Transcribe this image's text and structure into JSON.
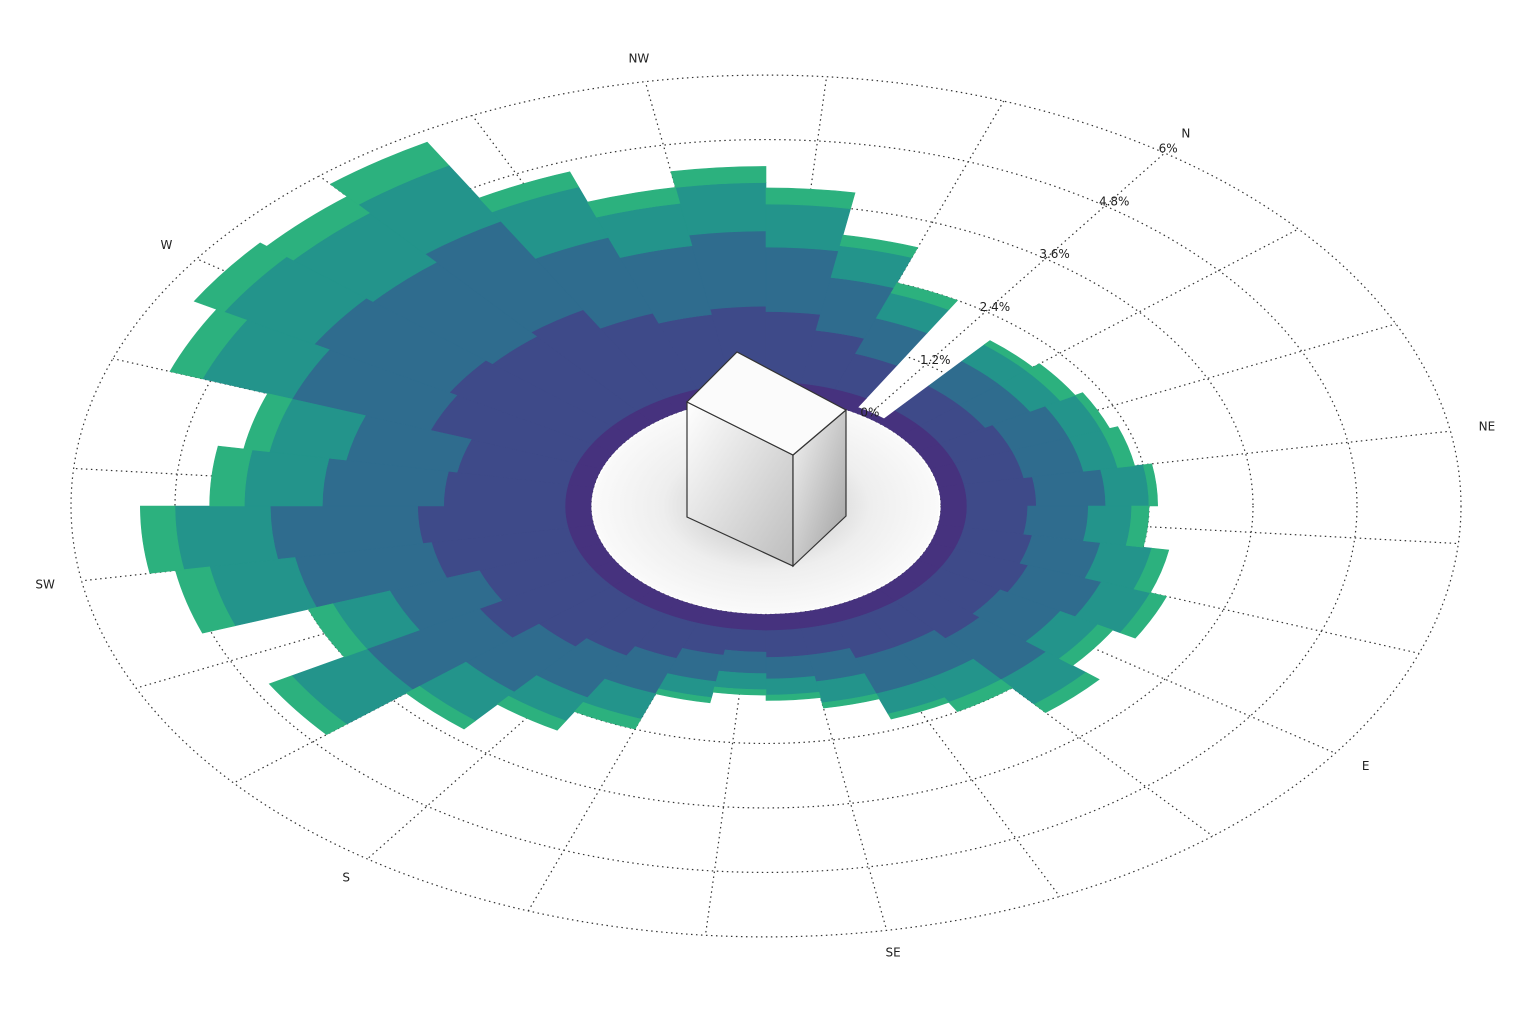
{
  "chart_data": {
    "type": "windrose",
    "x": [
      0,
      10,
      20,
      30,
      40,
      50,
      60,
      70,
      80,
      90,
      100,
      110,
      120,
      130,
      140,
      150,
      160,
      170,
      180,
      190,
      200,
      210,
      220,
      230,
      240,
      250,
      260,
      270,
      280,
      290,
      300,
      310,
      320,
      330,
      340,
      350
    ],
    "series": [
      {
        "color": "#46327e",
        "values": [
          0.1,
          0.3,
          0.3,
          0.3,
          0.3,
          0.3,
          0.3,
          0.3,
          0.3,
          0.3,
          0.3,
          0.3,
          0.3,
          0.3,
          0.3,
          0.3,
          0.3,
          0.3,
          0.3,
          0.3,
          0.3,
          0.3,
          0.3,
          0.3,
          0.3,
          0.3,
          0.3,
          0.3,
          0.3,
          0.3,
          0.3,
          0.3,
          0.3,
          0.3,
          0.3,
          0.3
        ]
      },
      {
        "color": "#3e4a89",
        "values": [
          0,
          0.6,
          0.6,
          0.7,
          0.7,
          0.8,
          0.7,
          0.8,
          0.9,
          0.8,
          0.9,
          0.7,
          0.7,
          0.5,
          0.5,
          0.4,
          0.5,
          0.7,
          0.9,
          1.1,
          1.5,
          1.2,
          1.6,
          1.7,
          1.4,
          1.3,
          1.8,
          1.9,
          1.8,
          1.9,
          1.5,
          1.3,
          1.4,
          1.3,
          1.0,
          0.7
        ]
      },
      {
        "color": "#2f6c8e",
        "values": [
          0,
          0.6,
          0.6,
          0.7,
          0.7,
          0.8,
          0.7,
          0.8,
          0.9,
          0.8,
          1.0,
          0.7,
          0.7,
          0.5,
          0.4,
          0.4,
          0.5,
          0.7,
          0.9,
          1.1,
          1.5,
          1.1,
          1.6,
          1.7,
          1.4,
          1.3,
          1.7,
          1.8,
          1.8,
          1.9,
          1.5,
          1.3,
          1.4,
          1.2,
          1.0,
          0.7
        ]
      },
      {
        "color": "#23948b",
        "values": [
          0,
          0.4,
          0.4,
          0.4,
          0.4,
          0.5,
          0.5,
          0.6,
          0.6,
          0.5,
          0.6,
          0.5,
          0.4,
          0.4,
          0.3,
          0.3,
          0.3,
          0.5,
          0.5,
          0.7,
          1.0,
          0.7,
          1.0,
          1.1,
          0.9,
          0.9,
          1.1,
          1.2,
          1.2,
          1.2,
          1.0,
          0.8,
          0.9,
          0.8,
          0.6,
          0.5
        ]
      },
      {
        "color": "#2cb17e",
        "values": [
          0,
          0.1,
          0.2,
          0.1,
          0.2,
          0.1,
          0.2,
          0.2,
          0.2,
          0.2,
          0.2,
          0.2,
          0.1,
          0.1,
          0.1,
          0.1,
          0.1,
          0.2,
          0.2,
          0.2,
          0.3,
          0.3,
          0.4,
          0.4,
          0.4,
          0.3,
          0.4,
          0.4,
          0.4,
          0.5,
          0.3,
          0.3,
          0.3,
          0.3,
          0.2,
          0.2
        ]
      }
    ],
    "rlim": [
      0,
      6
    ],
    "rticks": [
      {
        "value": 0,
        "label": "0%"
      },
      {
        "value": 1.2,
        "label": "1.2%"
      },
      {
        "value": 2.4,
        "label": "2.4%"
      },
      {
        "value": 3.6,
        "label": "3.6%"
      },
      {
        "value": 4.8,
        "label": "4.8%"
      },
      {
        "value": 6,
        "label": "6%"
      }
    ],
    "direction_labels": [
      {
        "value": 0,
        "label": "N"
      },
      {
        "value": 45,
        "label": "NE"
      },
      {
        "value": 90,
        "label": "E"
      },
      {
        "value": 135,
        "label": "SE"
      },
      {
        "value": 180,
        "label": "S"
      },
      {
        "value": 225,
        "label": "SW"
      },
      {
        "value": 270,
        "label": "W"
      },
      {
        "value": 315,
        "label": "NW"
      }
    ],
    "grid": true
  }
}
